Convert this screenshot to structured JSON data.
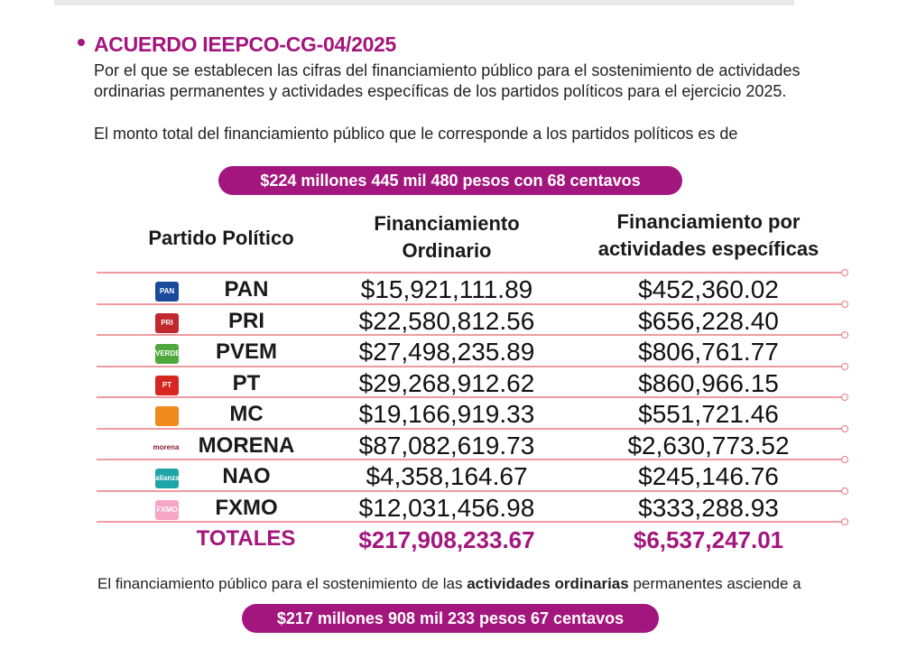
{
  "heading": "ACUERDO IEEPCO-CG-04/2025",
  "description": "Por el que se establecen las cifras del financiamiento público para el sostenimiento de actividades ordinarias permanentes y actividades específicas de los partidos políticos para el ejercicio 2025.",
  "intro": "El monto total del financiamiento público que le corresponde a los partidos políticos es de",
  "total_pill": "$224 millones 445 mil 480 pesos con 68 centavos",
  "table": {
    "headers": {
      "party": "Partido Político",
      "ordinary_line1": "Financiamiento",
      "ordinary_line2": "Ordinario",
      "specific_line1": "Financiamiento por",
      "specific_line2": "actividades específicas"
    },
    "rows": [
      {
        "party": "PAN",
        "logo_text": "PAN",
        "logo_color": "#1b4a9c",
        "ordinary": "$15,921,111.89",
        "specific": "$452,360.02"
      },
      {
        "party": "PRI",
        "logo_text": "PRI",
        "logo_color": "#c0282e",
        "ordinary": "$22,580,812.56",
        "specific": "$656,228.40"
      },
      {
        "party": "PVEM",
        "logo_text": "VERDE",
        "logo_color": "#4fa83d",
        "ordinary": "$27,498,235.89",
        "specific": "$806,761.77"
      },
      {
        "party": "PT",
        "logo_text": "PT",
        "logo_color": "#d6261f",
        "ordinary": "$29,268,912.62",
        "specific": "$860,966.15"
      },
      {
        "party": "MC",
        "logo_text": "",
        "logo_color": "#f08a1c",
        "ordinary": "$19,166,919.33",
        "specific": "$551,721.46"
      },
      {
        "party": "MORENA",
        "logo_text": "morena",
        "logo_color": "#8b1b2b",
        "ordinary": "$87,082,619.73",
        "specific": "$2,630,773.52"
      },
      {
        "party": "NAO",
        "logo_text": "alianza",
        "logo_color": "#1fa5a8",
        "ordinary": "$4,358,164.67",
        "specific": "$245,146.76"
      },
      {
        "party": "FXMO",
        "logo_text": "FXMO",
        "logo_color": "#f4a6c4",
        "ordinary": "$12,031,456.98",
        "specific": "$333,288.93"
      }
    ],
    "totals": {
      "label": "TOTALES",
      "ordinary": "$217,908,233.67",
      "specific": "$6,537,247.01"
    }
  },
  "footer": {
    "before": "El financiamiento público para el sostenimiento de las ",
    "bold": "actividades ordinarias",
    "after": " permanentes asciende a"
  },
  "ordinary_pill": "$217 millones 908 mil 233 pesos 67 centavos",
  "colors": {
    "accent": "#a3167d",
    "rule": "#ef9ba0"
  }
}
